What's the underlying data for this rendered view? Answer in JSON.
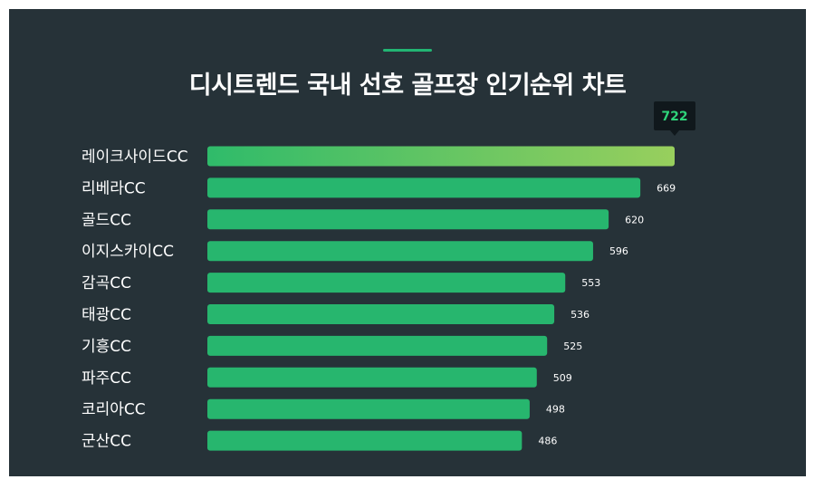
{
  "title": "디시트렌드 국내 선호 골프장 인기순위 차트",
  "colors": {
    "background": "#263238",
    "bar": "#27b66e",
    "bar_top_start": "#2fbb6a",
    "bar_top_end": "#98cf5d",
    "callout_bg": "#10181c",
    "callout_text": "#2ed47a"
  },
  "chart_data": {
    "type": "bar",
    "orientation": "horizontal",
    "categories": [
      "레이크사이드CC",
      "리베라CC",
      "골드CC",
      "이지스카이CC",
      "감곡CC",
      "태광CC",
      "기흥CC",
      "파주CC",
      "코리아CC",
      "군산CC"
    ],
    "values": [
      722,
      669,
      620,
      596,
      553,
      536,
      525,
      509,
      498,
      486
    ],
    "xlim": [
      0,
      722
    ],
    "grid": false,
    "highlight": {
      "index": 0,
      "callout": "722"
    }
  }
}
